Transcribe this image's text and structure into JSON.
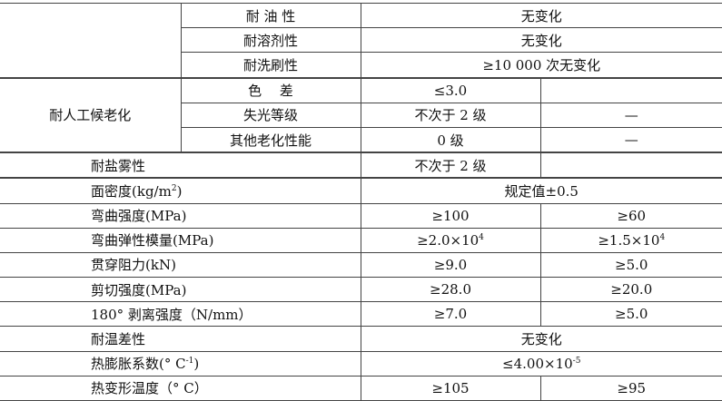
{
  "rows": [
    {
      "group": "",
      "name": "耐 油 性",
      "value": "无变化"
    },
    {
      "name": "耐溶剂性",
      "value": "无变化"
    },
    {
      "name": "耐洗刷性",
      "value": "≥10 000 次无变化"
    },
    {
      "group": "耐人工候老化",
      "name": "色　 差",
      "a": "≤3.0",
      "b": ""
    },
    {
      "name": "失光等级",
      "a": "不次于 2 级",
      "b": "—"
    },
    {
      "name": "其他老化性能",
      "a": "0 级",
      "b": "—"
    },
    {
      "name": "耐盐雾性",
      "a": "不次于 2 级",
      "b": ""
    },
    {
      "name": "面密度(kg/m",
      "sup": "2",
      "tail": ")",
      "value": "规定值±0.5"
    },
    {
      "name": "弯曲强度(MPa)",
      "a": "≥100",
      "b": "≥60"
    },
    {
      "name": "弯曲弹性模量(MPa)",
      "a": "≥2.0×10",
      "a_sup": "4",
      "b": "≥1.5×10",
      "b_sup": "4"
    },
    {
      "name": "贯穿阻力(kN)",
      "a": "≥9.0",
      "b": "≥5.0"
    },
    {
      "name": "剪切强度(MPa)",
      "a": "≥28.0",
      "b": "≥20.0"
    },
    {
      "name": "180° 剥离强度（N/mm）",
      "a": "≥7.0",
      "b": "≥5.0"
    },
    {
      "name": "耐温差性",
      "value": "无变化"
    },
    {
      "name": "热膨胀系数(° C",
      "sup": "-1",
      "tail": ")",
      "value": "≤4.00×10",
      "value_sup": "-5"
    },
    {
      "name": "热变形温度（° C）",
      "a": "≥105",
      "b": "≥95"
    }
  ]
}
